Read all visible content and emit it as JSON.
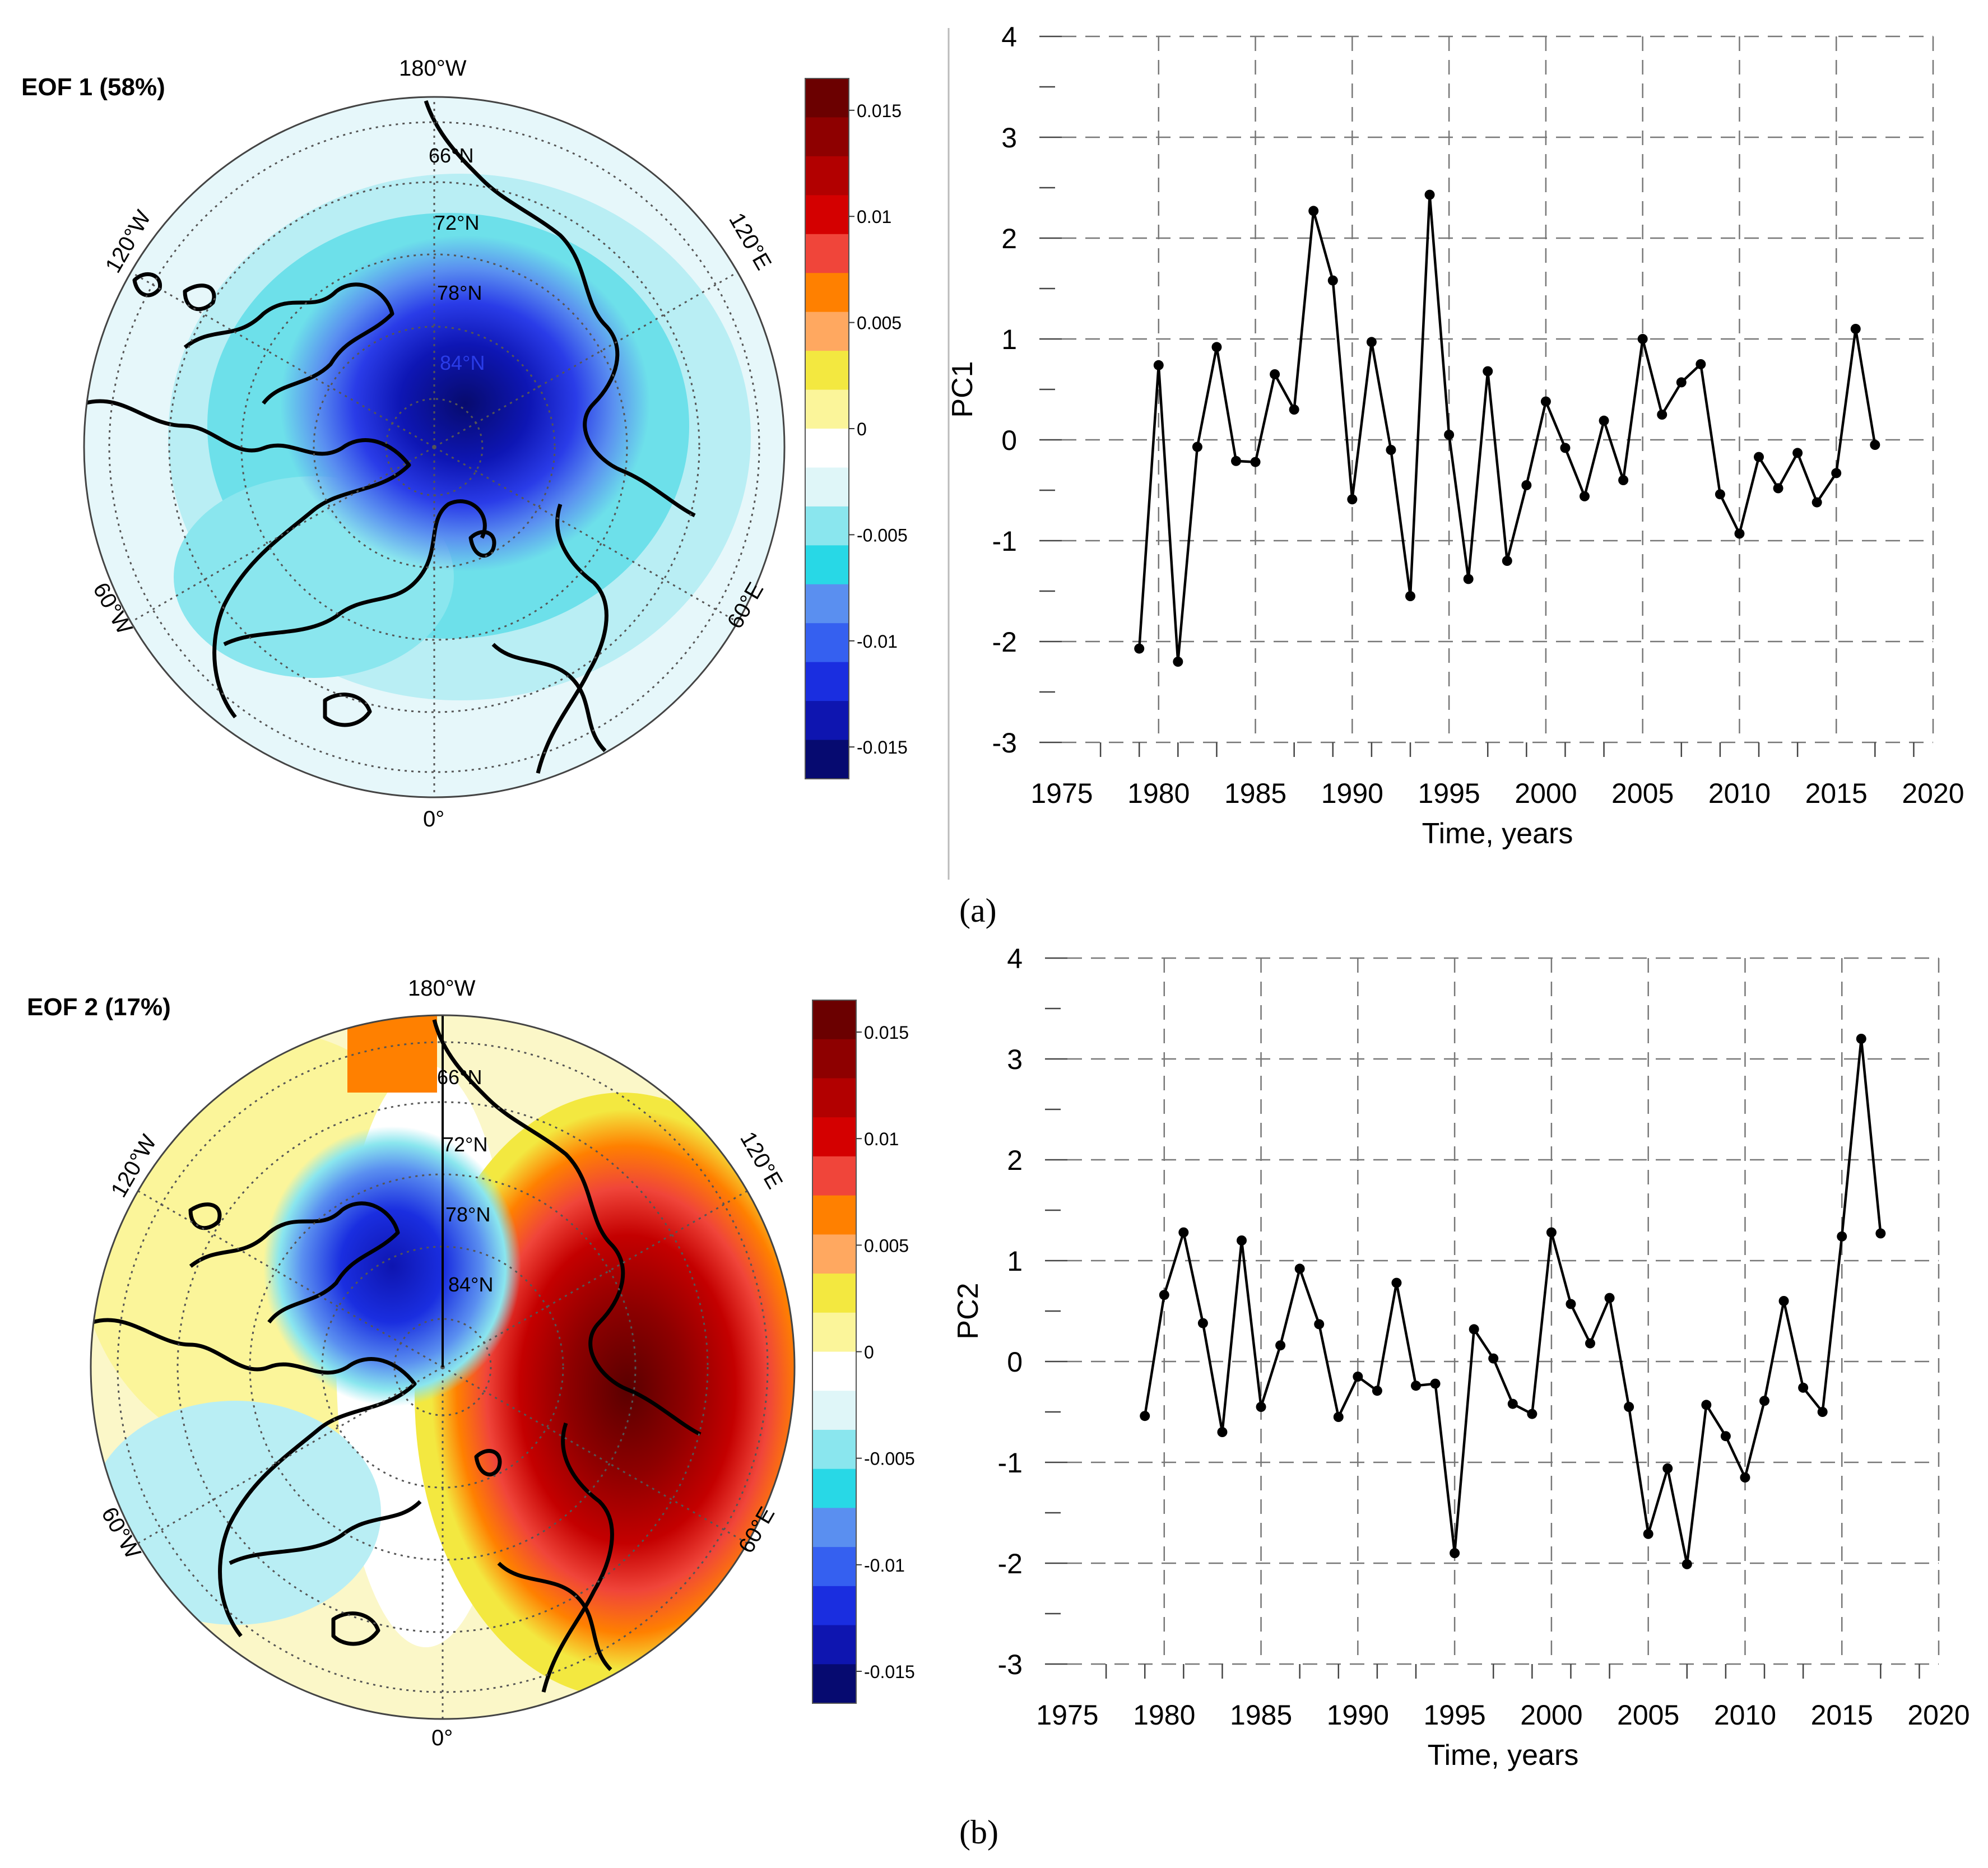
{
  "figure": {
    "panels": [
      {
        "panel_label": "(a)",
        "map": {
          "title": "EOF 1 (58%)",
          "meridian_labels": [
            "180°W",
            "120°W",
            "120°E",
            "60°W",
            "60°E",
            "0°"
          ],
          "latitude_labels": [
            "66°N",
            "72°N",
            "78°N",
            "84°N"
          ],
          "colorbar_ticks": [
            "0.015",
            "0.01",
            "0.005",
            "0",
            "-0.005",
            "-0.01",
            "-0.015"
          ]
        }
      },
      {
        "panel_label": "(b)",
        "map": {
          "title": "EOF 2 (17%)",
          "meridian_labels": [
            "180°W",
            "120°W",
            "120°E",
            "60°W",
            "60°E",
            "0°"
          ],
          "latitude_labels": [
            "66°N",
            "72°N",
            "78°N",
            "84°N"
          ],
          "colorbar_ticks": [
            "0.015",
            "0.01",
            "0.005",
            "0",
            "-0.005",
            "-0.01",
            "-0.015"
          ]
        }
      }
    ],
    "colorbar_colors": [
      "#6b0000",
      "#8e0000",
      "#b20000",
      "#d40000",
      "#f0453a",
      "#ff8000",
      "#ffa860",
      "#f3e840",
      "#fbf59a",
      "#ffffff",
      "#dff6f8",
      "#8ae6ee",
      "#28d8e6",
      "#5a8ff0",
      "#3560f0",
      "#1a2ee0",
      "#0e15b0",
      "#060a70"
    ]
  },
  "chart_data": [
    {
      "type": "line",
      "x": [
        1979,
        1980,
        1981,
        1982,
        1983,
        1984,
        1985,
        1986,
        1987,
        1988,
        1989,
        1990,
        1991,
        1992,
        1993,
        1994,
        1995,
        1996,
        1997,
        1998,
        1999,
        2000,
        2001,
        2002,
        2003,
        2004,
        2005,
        2006,
        2007,
        2008,
        2009,
        2010,
        2011,
        2012,
        2013,
        2014,
        2015,
        2016,
        2017
      ],
      "series": [
        {
          "values": [
            -2.07,
            0.74,
            -2.2,
            -0.07,
            0.92,
            -0.21,
            -0.22,
            0.65,
            0.3,
            2.27,
            1.58,
            -0.59,
            0.97,
            -0.1,
            -1.55,
            2.43,
            0.05,
            -1.38,
            0.68,
            -1.2,
            -0.45,
            0.38,
            -0.08,
            -0.56,
            0.19,
            -0.4,
            1.0,
            0.25,
            0.57,
            0.75,
            -0.54,
            -0.93,
            -0.17,
            -0.48,
            -0.13,
            -0.62,
            -0.33,
            1.1,
            -0.05
          ]
        }
      ],
      "xlabel": "Time, years",
      "ylabel": "PC1",
      "xlim": [
        1975,
        2020
      ],
      "ylim": [
        -3,
        4
      ],
      "xticks": [
        "1975",
        "1980",
        "1985",
        "1990",
        "1995",
        "2000",
        "2005",
        "2010",
        "2015",
        "2020"
      ],
      "yticks": [
        "4",
        "3",
        "2",
        "1",
        "0",
        "-1",
        "-2",
        "-3"
      ],
      "grid": true
    },
    {
      "type": "line",
      "x": [
        1979,
        1980,
        1981,
        1982,
        1983,
        1984,
        1985,
        1986,
        1987,
        1988,
        1989,
        1990,
        1991,
        1992,
        1993,
        1994,
        1995,
        1996,
        1997,
        1998,
        1999,
        2000,
        2001,
        2002,
        2003,
        2004,
        2005,
        2006,
        2007,
        2008,
        2009,
        2010,
        2011,
        2012,
        2013,
        2014,
        2015,
        2016,
        2017
      ],
      "series": [
        {
          "values": [
            -0.54,
            0.66,
            1.28,
            0.38,
            -0.7,
            1.2,
            -0.45,
            0.16,
            0.92,
            0.37,
            -0.55,
            -0.15,
            -0.29,
            0.78,
            -0.24,
            -0.22,
            -1.9,
            0.32,
            0.03,
            -0.42,
            -0.52,
            1.28,
            0.57,
            0.18,
            0.63,
            -0.45,
            -1.71,
            -1.06,
            -2.01,
            -0.43,
            -0.74,
            -1.15,
            -0.39,
            0.6,
            -0.26,
            -0.5,
            1.24,
            3.2,
            1.27
          ]
        }
      ],
      "xlabel": "Time, years",
      "ylabel": "PC2",
      "xlim": [
        1975,
        2020
      ],
      "ylim": [
        -3,
        4
      ],
      "xticks": [
        "1975",
        "1980",
        "1985",
        "1990",
        "1995",
        "2000",
        "2005",
        "2010",
        "2015",
        "2020"
      ],
      "yticks": [
        "4",
        "3",
        "2",
        "1",
        "0",
        "-1",
        "-2",
        "-3"
      ],
      "grid": true
    }
  ]
}
